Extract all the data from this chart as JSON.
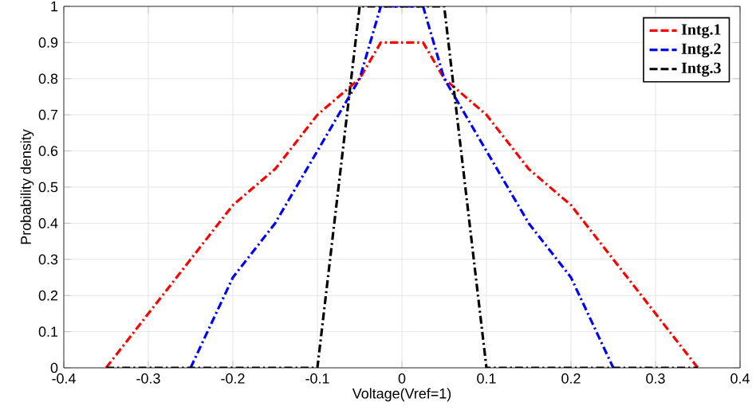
{
  "chart_data": {
    "type": "line",
    "xlabel": "Voltage(Vref=1)",
    "ylabel": "Probability density",
    "series": [
      {
        "name": "Intg.1",
        "color": "#ff0000",
        "x": [
          -0.35,
          -0.3,
          -0.2,
          -0.15,
          -0.1,
          -0.05,
          -0.025,
          0.025,
          0.05,
          0.1,
          0.15,
          0.2,
          0.3,
          0.35
        ],
        "values": [
          0,
          0.15,
          0.45,
          0.55,
          0.7,
          0.8,
          0.9,
          0.9,
          0.8,
          0.7,
          0.55,
          0.45,
          0.15,
          0
        ]
      },
      {
        "name": "Intg.2",
        "color": "#0000ff",
        "x": [
          -0.25,
          -0.2,
          -0.15,
          -0.1,
          -0.05,
          -0.025,
          0.025,
          0.05,
          0.1,
          0.15,
          0.2,
          0.25
        ],
        "values": [
          0,
          0.25,
          0.4,
          0.6,
          0.8,
          1,
          1,
          0.8,
          0.6,
          0.4,
          0.25,
          0
        ]
      },
      {
        "name": "Intg.3",
        "color": "#000000",
        "x": [
          -0.35,
          -0.1,
          -0.05,
          0.05,
          0.1,
          0.35
        ],
        "values": [
          0,
          0,
          1,
          1,
          0,
          0
        ]
      }
    ],
    "xlim": [
      -0.4,
      0.4
    ],
    "ylim": [
      0,
      1
    ],
    "xticks": [
      -0.4,
      -0.3,
      -0.2,
      -0.1,
      0,
      0.1,
      0.2,
      0.3,
      0.4
    ],
    "yticks": [
      0,
      0.1,
      0.2,
      0.3,
      0.4,
      0.5,
      0.6,
      0.7,
      0.8,
      0.9,
      1
    ],
    "grid": true,
    "legend": "top right",
    "marker": "none",
    "line_style": "dashed"
  }
}
